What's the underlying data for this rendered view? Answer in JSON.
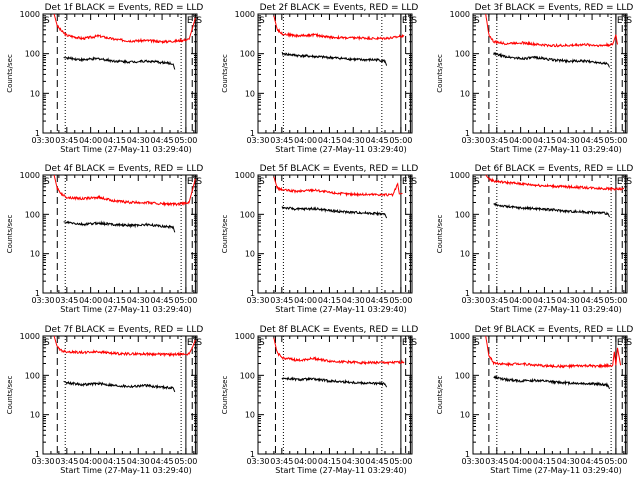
{
  "chart_data": [
    {
      "type": "line",
      "title": "Det 1f BLACK = Events, RED = LLD",
      "xlabel": "Start Time (27-May-11 03:29:40)",
      "ylabel": "Counts/sec",
      "yscale": "log",
      "ylim": [
        1,
        1000
      ],
      "xlim": [
        "03:30",
        "05:07"
      ],
      "x_ticks": [
        "03:30",
        "03:45",
        "04:00",
        "04:15",
        "04:30",
        "04:45",
        "05:00"
      ],
      "y_ticks": [
        "1",
        "10",
        "100",
        "1000"
      ],
      "markers": [
        {
          "label": "S",
          "time": "03:30"
        },
        {
          "label": "E",
          "time": "05:00"
        },
        {
          "label": "S",
          "time": "05:06"
        }
      ],
      "vlines": [
        {
          "style": "dashed",
          "time": "03:39"
        },
        {
          "style": "dotted",
          "time": "03:44"
        },
        {
          "style": "dotted",
          "time": "04:57"
        },
        {
          "style": "dashed",
          "time": "05:04"
        }
      ],
      "series": [
        {
          "color": "#ff0000",
          "x": [
            "03:37",
            "03:39",
            "03:42",
            "03:45",
            "03:55",
            "04:05",
            "04:15",
            "04:25",
            "04:35",
            "04:45",
            "04:55",
            "05:02",
            "05:04",
            "05:06"
          ],
          "y": [
            1000,
            500,
            360,
            290,
            240,
            280,
            230,
            210,
            215,
            200,
            210,
            230,
            420,
            800
          ]
        },
        {
          "color": "#000000",
          "x": [
            "03:43",
            "03:45",
            "03:55",
            "04:05",
            "04:15",
            "04:25",
            "04:35",
            "04:45",
            "04:52",
            "04:53"
          ],
          "y": [
            80,
            78,
            70,
            75,
            65,
            62,
            65,
            60,
            55,
            40
          ]
        }
      ]
    },
    {
      "type": "line",
      "title": "Det 2f BLACK = Events, RED = LLD",
      "xlabel": "Start Time (27-May-11 03:29:40)",
      "ylabel": "Counts/sec",
      "yscale": "log",
      "ylim": [
        1,
        1000
      ],
      "xlim": [
        "03:30",
        "05:07"
      ],
      "x_ticks": [
        "03:30",
        "03:45",
        "04:00",
        "04:15",
        "04:30",
        "04:45",
        "05:00"
      ],
      "y_ticks": [
        "1",
        "10",
        "100",
        "1000"
      ],
      "markers": [
        {
          "label": "S",
          "time": "03:30"
        },
        {
          "label": "E",
          "time": "05:00"
        },
        {
          "label": "S",
          "time": "05:06"
        }
      ],
      "vlines": [
        {
          "style": "dashed",
          "time": "03:41"
        },
        {
          "style": "dotted",
          "time": "03:46"
        },
        {
          "style": "dotted",
          "time": "04:48"
        },
        {
          "style": "dashed",
          "time": "05:03"
        }
      ],
      "series": [
        {
          "color": "#ff0000",
          "x": [
            "03:40",
            "03:42",
            "03:45",
            "03:55",
            "04:05",
            "04:15",
            "04:25",
            "04:35",
            "04:45",
            "04:55",
            "05:02"
          ],
          "y": [
            900,
            420,
            320,
            280,
            300,
            260,
            250,
            250,
            240,
            250,
            290
          ]
        },
        {
          "color": "#000000",
          "x": [
            "03:45",
            "03:55",
            "04:05",
            "04:15",
            "04:25",
            "04:35",
            "04:45",
            "04:50",
            "04:51"
          ],
          "y": [
            100,
            90,
            85,
            80,
            75,
            70,
            70,
            65,
            50
          ]
        }
      ]
    },
    {
      "type": "line",
      "title": "Det 3f BLACK = Events, RED = LLD",
      "xlabel": "Start Time (27-May-11 03:29:40)",
      "ylabel": "Counts/sec",
      "yscale": "log",
      "ylim": [
        1,
        1000
      ],
      "xlim": [
        "03:30",
        "05:07"
      ],
      "x_ticks": [
        "03:30",
        "03:45",
        "04:00",
        "04:15",
        "04:30",
        "04:45",
        "05:00"
      ],
      "y_ticks": [
        "1",
        "10",
        "100",
        "1000"
      ],
      "markers": [
        {
          "label": "S",
          "time": "03:30"
        },
        {
          "label": "E",
          "time": "05:00"
        },
        {
          "label": "S",
          "time": "05:06"
        }
      ],
      "vlines": [
        {
          "style": "dashed",
          "time": "03:40"
        },
        {
          "style": "dotted",
          "time": "03:45"
        },
        {
          "style": "dotted",
          "time": "04:57"
        },
        {
          "style": "dashed",
          "time": "05:04"
        }
      ],
      "series": [
        {
          "color": "#ff0000",
          "x": [
            "03:38",
            "03:40",
            "03:43",
            "03:50",
            "04:00",
            "04:10",
            "04:20",
            "04:30",
            "04:40",
            "04:50",
            "04:58",
            "05:00",
            "05:01"
          ],
          "y": [
            1000,
            300,
            200,
            180,
            190,
            170,
            160,
            160,
            170,
            160,
            170,
            300,
            170
          ]
        },
        {
          "color": "#000000",
          "x": [
            "03:43",
            "03:50",
            "04:00",
            "04:10",
            "04:20",
            "04:30",
            "04:40",
            "04:50",
            "04:55",
            "04:56"
          ],
          "y": [
            100,
            85,
            75,
            80,
            70,
            65,
            65,
            60,
            55,
            45
          ]
        }
      ]
    },
    {
      "type": "line",
      "title": "Det 4f BLACK = Events, RED = LLD",
      "xlabel": "Start Time (27-May-11 03:29:40)",
      "ylabel": "Counts/sec",
      "yscale": "log",
      "ylim": [
        1,
        1000
      ],
      "xlim": [
        "03:30",
        "05:07"
      ],
      "x_ticks": [
        "03:30",
        "03:45",
        "04:00",
        "04:15",
        "04:30",
        "04:45",
        "05:00"
      ],
      "y_ticks": [
        "1",
        "10",
        "100",
        "1000"
      ],
      "markers": [
        {
          "label": "S",
          "time": "03:30"
        },
        {
          "label": "E",
          "time": "05:00"
        },
        {
          "label": "S",
          "time": "05:06"
        }
      ],
      "vlines": [
        {
          "style": "dashed",
          "time": "03:39"
        },
        {
          "style": "dotted",
          "time": "03:44"
        },
        {
          "style": "dotted",
          "time": "04:57"
        },
        {
          "style": "dashed",
          "time": "05:04"
        }
      ],
      "series": [
        {
          "color": "#ff0000",
          "x": [
            "03:37",
            "03:39",
            "03:42",
            "03:45",
            "03:55",
            "04:05",
            "04:15",
            "04:25",
            "04:35",
            "04:45",
            "04:55",
            "05:02",
            "05:04",
            "05:06"
          ],
          "y": [
            1000,
            450,
            320,
            270,
            250,
            270,
            220,
            200,
            200,
            185,
            180,
            200,
            400,
            800
          ]
        },
        {
          "color": "#000000",
          "x": [
            "03:43",
            "03:45",
            "03:55",
            "04:05",
            "04:15",
            "04:25",
            "04:35",
            "04:45",
            "04:52",
            "04:53"
          ],
          "y": [
            65,
            62,
            55,
            60,
            55,
            52,
            55,
            50,
            48,
            35
          ]
        }
      ]
    },
    {
      "type": "line",
      "title": "Det 5f BLACK = Events, RED = LLD",
      "xlabel": "Start Time (27-May-11 03:29:40)",
      "ylabel": "Counts/sec",
      "yscale": "log",
      "ylim": [
        1,
        1000
      ],
      "xlim": [
        "03:30",
        "05:07"
      ],
      "x_ticks": [
        "03:30",
        "03:45",
        "04:00",
        "04:15",
        "04:30",
        "04:45",
        "05:00"
      ],
      "y_ticks": [
        "1",
        "10",
        "100",
        "1000"
      ],
      "markers": [
        {
          "label": "S",
          "time": "03:30"
        },
        {
          "label": "E",
          "time": "05:00"
        },
        {
          "label": "S",
          "time": "05:06"
        }
      ],
      "vlines": [
        {
          "style": "dashed",
          "time": "03:41"
        },
        {
          "style": "dotted",
          "time": "03:46"
        },
        {
          "style": "dotted",
          "time": "04:48"
        },
        {
          "style": "dashed",
          "time": "05:03"
        }
      ],
      "series": [
        {
          "color": "#ff0000",
          "x": [
            "03:40",
            "03:42",
            "03:45",
            "03:55",
            "04:05",
            "04:15",
            "04:25",
            "04:35",
            "04:45",
            "04:55",
            "04:58",
            "04:59",
            "05:01"
          ],
          "y": [
            900,
            480,
            420,
            380,
            420,
            360,
            330,
            320,
            320,
            310,
            600,
            330,
            340
          ]
        },
        {
          "color": "#000000",
          "x": [
            "03:45",
            "03:55",
            "04:05",
            "04:15",
            "04:25",
            "04:35",
            "04:45",
            "04:50",
            "04:51"
          ],
          "y": [
            150,
            135,
            140,
            125,
            115,
            110,
            105,
            100,
            80
          ]
        }
      ]
    },
    {
      "type": "line",
      "title": "Det 6f BLACK = Events, RED = LLD",
      "xlabel": "Start Time (27-May-11 03:29:40)",
      "ylabel": "Counts/sec",
      "yscale": "log",
      "ylim": [
        1,
        1000
      ],
      "xlim": [
        "03:30",
        "05:07"
      ],
      "x_ticks": [
        "03:30",
        "03:45",
        "04:00",
        "04:15",
        "04:30",
        "04:45",
        "05:00"
      ],
      "y_ticks": [
        "1",
        "10",
        "100",
        "1000"
      ],
      "markers": [
        {
          "label": "S",
          "time": "03:30"
        },
        {
          "label": "E",
          "time": "05:00"
        },
        {
          "label": "S",
          "time": "05:06"
        }
      ],
      "vlines": [
        {
          "style": "dashed",
          "time": "03:40"
        },
        {
          "style": "dotted",
          "time": "03:45"
        },
        {
          "style": "dotted",
          "time": "04:57"
        },
        {
          "style": "dashed",
          "time": "05:04"
        }
      ],
      "series": [
        {
          "color": "#ff0000",
          "x": [
            "03:38",
            "03:40",
            "03:43",
            "03:50",
            "04:00",
            "04:10",
            "04:20",
            "04:30",
            "04:40",
            "04:50",
            "05:00",
            "05:05"
          ],
          "y": [
            1000,
            800,
            700,
            650,
            600,
            550,
            520,
            500,
            480,
            460,
            440,
            440
          ]
        },
        {
          "color": "#000000",
          "x": [
            "03:43",
            "03:50",
            "04:00",
            "04:10",
            "04:20",
            "04:30",
            "04:40",
            "04:50",
            "04:55",
            "04:56"
          ],
          "y": [
            180,
            160,
            145,
            140,
            130,
            120,
            115,
            110,
            105,
            85
          ]
        }
      ]
    },
    {
      "type": "line",
      "title": "Det 7f BLACK = Events, RED = LLD",
      "xlabel": "Start Time (27-May-11 03:29:40)",
      "ylabel": "Counts/sec",
      "yscale": "log",
      "ylim": [
        1,
        1000
      ],
      "xlim": [
        "03:30",
        "05:07"
      ],
      "x_ticks": [
        "03:30",
        "03:45",
        "04:00",
        "04:15",
        "04:30",
        "04:45",
        "05:00"
      ],
      "y_ticks": [
        "1",
        "10",
        "100",
        "1000"
      ],
      "markers": [
        {
          "label": "S",
          "time": "03:30"
        },
        {
          "label": "E",
          "time": "05:00"
        },
        {
          "label": "S",
          "time": "05:06"
        }
      ],
      "vlines": [
        {
          "style": "dashed",
          "time": "03:39"
        },
        {
          "style": "dotted",
          "time": "03:44"
        },
        {
          "style": "dotted",
          "time": "04:57"
        },
        {
          "style": "dashed",
          "time": "05:04"
        }
      ],
      "series": [
        {
          "color": "#ff0000",
          "x": [
            "03:37",
            "03:39",
            "03:42",
            "03:45",
            "03:55",
            "04:05",
            "04:15",
            "04:25",
            "04:35",
            "04:45",
            "04:55",
            "05:02",
            "05:04",
            "05:06"
          ],
          "y": [
            1000,
            520,
            420,
            400,
            380,
            400,
            360,
            350,
            350,
            340,
            340,
            350,
            500,
            800
          ]
        },
        {
          "color": "#000000",
          "x": [
            "03:43",
            "03:45",
            "03:55",
            "04:05",
            "04:15",
            "04:25",
            "04:35",
            "04:45",
            "04:52",
            "04:53"
          ],
          "y": [
            70,
            65,
            58,
            62,
            55,
            52,
            55,
            50,
            48,
            38
          ]
        }
      ]
    },
    {
      "type": "line",
      "title": "Det 8f BLACK = Events, RED = LLD",
      "xlabel": "Start Time (27-May-11 03:29:40)",
      "ylabel": "Counts/sec",
      "yscale": "log",
      "ylim": [
        1,
        1000
      ],
      "xlim": [
        "03:30",
        "05:07"
      ],
      "x_ticks": [
        "03:30",
        "03:45",
        "04:00",
        "04:15",
        "04:30",
        "04:45",
        "05:00"
      ],
      "y_ticks": [
        "1",
        "10",
        "100",
        "1000"
      ],
      "markers": [
        {
          "label": "S",
          "time": "03:30"
        },
        {
          "label": "E",
          "time": "05:00"
        },
        {
          "label": "S",
          "time": "05:06"
        }
      ],
      "vlines": [
        {
          "style": "dashed",
          "time": "03:41"
        },
        {
          "style": "dotted",
          "time": "03:46"
        },
        {
          "style": "dotted",
          "time": "04:48"
        },
        {
          "style": "dashed",
          "time": "05:03"
        }
      ],
      "series": [
        {
          "color": "#ff0000",
          "x": [
            "03:40",
            "03:42",
            "03:45",
            "03:55",
            "04:05",
            "04:15",
            "04:25",
            "04:35",
            "04:45",
            "04:55",
            "05:02"
          ],
          "y": [
            900,
            380,
            280,
            240,
            270,
            230,
            220,
            210,
            210,
            210,
            220
          ]
        },
        {
          "color": "#000000",
          "x": [
            "03:45",
            "03:55",
            "04:05",
            "04:15",
            "04:25",
            "04:35",
            "04:45",
            "04:50",
            "04:51"
          ],
          "y": [
            85,
            78,
            80,
            72,
            68,
            64,
            62,
            60,
            50
          ]
        }
      ]
    },
    {
      "type": "line",
      "title": "Det 9f BLACK = Events, RED = LLD",
      "xlabel": "Start Time (27-May-11 03:29:40)",
      "ylabel": "Counts/sec",
      "yscale": "log",
      "ylim": [
        1,
        1000
      ],
      "xlim": [
        "03:30",
        "05:07"
      ],
      "x_ticks": [
        "03:30",
        "03:45",
        "04:00",
        "04:15",
        "04:30",
        "04:45",
        "05:00"
      ],
      "y_ticks": [
        "1",
        "10",
        "100",
        "1000"
      ],
      "markers": [
        {
          "label": "S",
          "time": "03:30"
        },
        {
          "label": "E",
          "time": "05:00"
        },
        {
          "label": "S",
          "time": "05:06"
        }
      ],
      "vlines": [
        {
          "style": "dashed",
          "time": "03:40"
        },
        {
          "style": "dotted",
          "time": "03:45"
        },
        {
          "style": "dotted",
          "time": "04:57"
        },
        {
          "style": "dashed",
          "time": "05:04"
        }
      ],
      "series": [
        {
          "color": "#ff0000",
          "x": [
            "03:38",
            "03:40",
            "03:43",
            "03:50",
            "04:00",
            "04:10",
            "04:20",
            "04:30",
            "04:40",
            "04:50",
            "04:58",
            "04:59",
            "05:00",
            "05:01",
            "05:03"
          ],
          "y": [
            1000,
            320,
            210,
            190,
            200,
            180,
            170,
            170,
            175,
            170,
            180,
            400,
            180,
            500,
            180
          ]
        },
        {
          "color": "#000000",
          "x": [
            "03:43",
            "03:50",
            "04:00",
            "04:10",
            "04:20",
            "04:30",
            "04:40",
            "04:50",
            "04:55",
            "04:56"
          ],
          "y": [
            90,
            78,
            72,
            74,
            68,
            64,
            62,
            60,
            56,
            45
          ]
        }
      ]
    }
  ]
}
